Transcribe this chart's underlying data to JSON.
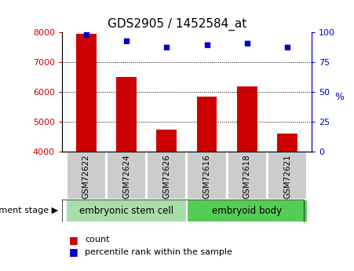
{
  "title": "GDS2905 / 1452584_at",
  "samples": [
    "GSM72622",
    "GSM72624",
    "GSM72626",
    "GSM72616",
    "GSM72618",
    "GSM72621"
  ],
  "counts": [
    7950,
    6500,
    4750,
    5850,
    6200,
    4600
  ],
  "percentile_ranks": [
    98,
    93,
    88,
    90,
    91,
    88
  ],
  "ylim_left": [
    4000,
    8000
  ],
  "ylim_right": [
    0,
    100
  ],
  "yticks_left": [
    4000,
    5000,
    6000,
    7000,
    8000
  ],
  "yticks_right": [
    0,
    25,
    50,
    75,
    100
  ],
  "bar_color": "#cc0000",
  "dot_color": "#0000cc",
  "axis_left_color": "#cc0000",
  "axis_right_color": "#0000cc",
  "groups": [
    {
      "label": "embryonic stem cell",
      "start": 0,
      "end": 3,
      "color": "#aaddaa"
    },
    {
      "label": "embryoid body",
      "start": 3,
      "end": 6,
      "color": "#55cc55"
    }
  ],
  "group_row_label": "development stage",
  "legend_count_label": "count",
  "legend_percentile_label": "percentile rank within the sample",
  "tick_label_bg": "#cccccc",
  "bar_bottom": 4000
}
